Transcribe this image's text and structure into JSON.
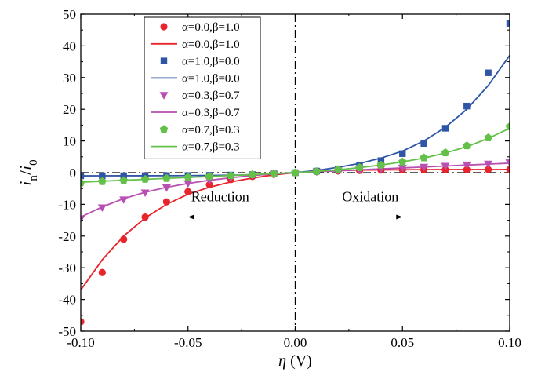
{
  "chart_data": {
    "type": "scatter",
    "xlabel": "η (V)",
    "ylabel": "i_n/i_0",
    "xlim": [
      -0.1,
      0.1
    ],
    "ylim": [
      -50,
      50
    ],
    "x_ticks": [
      "-0.10",
      "-0.05",
      "0.00",
      "0.05",
      "0.10"
    ],
    "y_ticks": [
      "-50",
      "-40",
      "-30",
      "-20",
      "-10",
      "0",
      "10",
      "20",
      "30",
      "40",
      "50"
    ],
    "grid": false,
    "legend_position": "top-left",
    "annotations": [
      {
        "text": "Reduction",
        "arrow": "left"
      },
      {
        "text": "Oxidation",
        "arrow": "right"
      }
    ],
    "series": [
      {
        "name": "α=0.0,β=1.0",
        "kind": "points",
        "marker": "circle",
        "color": "#e8242c",
        "x": [
          -0.1,
          -0.09,
          -0.08,
          -0.07,
          -0.06,
          -0.05,
          -0.04,
          -0.03,
          -0.02,
          -0.01,
          0.0,
          0.01,
          0.02,
          0.03,
          0.04,
          0.05,
          0.06,
          0.07,
          0.08,
          0.09,
          0.1
        ],
        "y": [
          -47,
          -31.5,
          -21,
          -14,
          -9.2,
          -6,
          -3.8,
          -2.2,
          -1.2,
          -0.5,
          0,
          0.3,
          0.55,
          0.7,
          0.8,
          0.9,
          0.92,
          0.95,
          0.97,
          0.98,
          1.0
        ]
      },
      {
        "name": "α=0.0,β=1.0",
        "kind": "line",
        "color": "#e8242c",
        "x": [
          -0.1,
          -0.09,
          -0.08,
          -0.07,
          -0.06,
          -0.05,
          -0.04,
          -0.03,
          -0.02,
          -0.01,
          0.0,
          0.01,
          0.02,
          0.03,
          0.04,
          0.05,
          0.06,
          0.07,
          0.08,
          0.09,
          0.1
        ],
        "y": [
          -37,
          -27.5,
          -20,
          -14.3,
          -10,
          -6.8,
          -4.6,
          -2.9,
          -1.7,
          -0.7,
          0,
          0.4,
          0.65,
          0.8,
          0.88,
          0.92,
          0.95,
          0.97,
          0.98,
          0.99,
          1.0
        ]
      },
      {
        "name": "α=1.0,β=0.0",
        "kind": "points",
        "marker": "square",
        "color": "#2f56a6",
        "x": [
          -0.1,
          -0.09,
          -0.08,
          -0.07,
          -0.06,
          -0.05,
          -0.04,
          -0.03,
          -0.02,
          -0.01,
          0.0,
          0.01,
          0.02,
          0.03,
          0.04,
          0.05,
          0.06,
          0.07,
          0.08,
          0.09,
          0.1
        ],
        "y": [
          -1.0,
          -0.98,
          -0.97,
          -0.95,
          -0.93,
          -0.9,
          -0.85,
          -0.75,
          -0.6,
          -0.35,
          0,
          0.5,
          1.2,
          2.2,
          3.8,
          6,
          9.2,
          14,
          21,
          31.5,
          47
        ]
      },
      {
        "name": "α=1.0,β=0.0",
        "kind": "line",
        "color": "#2f56a6",
        "x": [
          -0.1,
          -0.09,
          -0.08,
          -0.07,
          -0.06,
          -0.05,
          -0.04,
          -0.03,
          -0.02,
          -0.01,
          0.0,
          0.01,
          0.02,
          0.03,
          0.04,
          0.05,
          0.06,
          0.07,
          0.08,
          0.09,
          0.1
        ],
        "y": [
          -1.0,
          -0.99,
          -0.98,
          -0.97,
          -0.95,
          -0.92,
          -0.88,
          -0.8,
          -0.65,
          -0.4,
          0,
          0.7,
          1.7,
          2.9,
          4.6,
          6.8,
          10,
          14.3,
          20,
          27.5,
          37
        ]
      },
      {
        "name": "α=0.3,β=0.7",
        "kind": "points",
        "marker": "triangle-down",
        "color": "#b84fb3",
        "x": [
          -0.1,
          -0.09,
          -0.08,
          -0.07,
          -0.06,
          -0.05,
          -0.04,
          -0.03,
          -0.02,
          -0.01,
          0.0,
          0.01,
          0.02,
          0.03,
          0.04,
          0.05,
          0.06,
          0.07,
          0.08,
          0.09,
          0.1
        ],
        "y": [
          -14.5,
          -11,
          -8.5,
          -6.3,
          -4.7,
          -3.4,
          -2.4,
          -1.6,
          -1.0,
          -0.4,
          0,
          0.3,
          0.6,
          0.9,
          1.2,
          1.5,
          1.8,
          2.1,
          2.5,
          2.8,
          3.2
        ]
      },
      {
        "name": "α=0.3,β=0.7",
        "kind": "line",
        "color": "#b84fb3",
        "x": [
          -0.1,
          -0.09,
          -0.08,
          -0.07,
          -0.06,
          -0.05,
          -0.04,
          -0.03,
          -0.02,
          -0.01,
          0.0,
          0.01,
          0.02,
          0.03,
          0.04,
          0.05,
          0.06,
          0.07,
          0.08,
          0.09,
          0.1
        ],
        "y": [
          -14,
          -10.8,
          -8.2,
          -6.2,
          -4.6,
          -3.4,
          -2.4,
          -1.6,
          -0.9,
          -0.4,
          0,
          0.3,
          0.6,
          0.9,
          1.2,
          1.5,
          1.8,
          2.1,
          2.4,
          2.7,
          3.0
        ]
      },
      {
        "name": "α=0.7,β=0.3",
        "kind": "points",
        "marker": "pentagon",
        "color": "#63c14a",
        "x": [
          -0.1,
          -0.09,
          -0.08,
          -0.07,
          -0.06,
          -0.05,
          -0.04,
          -0.03,
          -0.02,
          -0.01,
          0.0,
          0.01,
          0.02,
          0.03,
          0.04,
          0.05,
          0.06,
          0.07,
          0.08,
          0.09,
          0.1
        ],
        "y": [
          -3.2,
          -2.8,
          -2.5,
          -2.1,
          -1.8,
          -1.5,
          -1.2,
          -0.9,
          -0.6,
          -0.3,
          0,
          0.4,
          1.0,
          1.6,
          2.4,
          3.4,
          4.7,
          6.3,
          8.5,
          11,
          14.5
        ]
      },
      {
        "name": "α=0.7,β=0.3",
        "kind": "line",
        "color": "#63c14a",
        "x": [
          -0.1,
          -0.09,
          -0.08,
          -0.07,
          -0.06,
          -0.05,
          -0.04,
          -0.03,
          -0.02,
          -0.01,
          0.0,
          0.01,
          0.02,
          0.03,
          0.04,
          0.05,
          0.06,
          0.07,
          0.08,
          0.09,
          0.1
        ],
        "y": [
          -3.0,
          -2.7,
          -2.4,
          -2.1,
          -1.8,
          -1.5,
          -1.2,
          -0.9,
          -0.6,
          -0.3,
          0,
          0.4,
          0.9,
          1.6,
          2.4,
          3.4,
          4.6,
          6.2,
          8.2,
          10.8,
          14
        ]
      }
    ]
  }
}
